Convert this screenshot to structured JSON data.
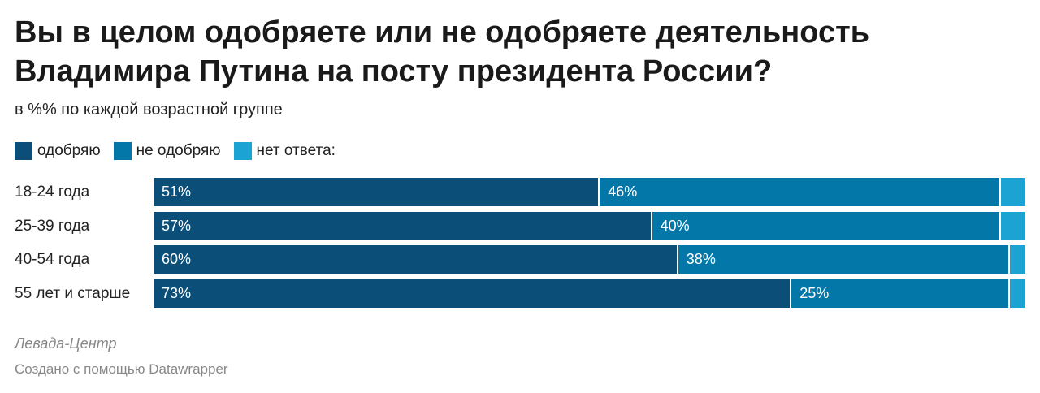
{
  "header": {
    "title_line1": "Вы в целом одобряете или не одобряете деятельность",
    "title_line2": "Владимира Путина на посту президента России?",
    "subtitle": "в %% по каждой возрастной группе"
  },
  "legend": [
    {
      "label": "одобряю",
      "color": "#0b4f78"
    },
    {
      "label": "не одобряю",
      "color": "#0377a8"
    },
    {
      "label": "нет ответа:",
      "color": "#1ba3d4"
    }
  ],
  "chart_data": {
    "type": "bar",
    "orientation": "horizontal",
    "stacked": true,
    "title": "Вы в целом одобряете или не одобряете деятельность Владимира Путина на посту президента России?",
    "subtitle": "в %% по каждой возрастной группе",
    "categories": [
      "18-24 года",
      "25-39 года",
      "40-54 года",
      "55 лет и старше"
    ],
    "series": [
      {
        "name": "одобряю",
        "values": [
          51,
          57,
          60,
          73
        ],
        "labels": [
          "51%",
          "57%",
          "60%",
          "73%"
        ],
        "color": "#0b4f78"
      },
      {
        "name": "не одобряю",
        "values": [
          46,
          40,
          38,
          25
        ],
        "labels": [
          "46%",
          "40%",
          "38%",
          "25%"
        ],
        "color": "#0377a8"
      },
      {
        "name": "нет ответа:",
        "values": [
          3,
          3,
          2,
          2
        ],
        "labels": [
          "",
          "",
          "",
          ""
        ],
        "color": "#1ba3d4"
      }
    ],
    "xlim": [
      0,
      100
    ],
    "grid": false,
    "legend_position": "top-left"
  },
  "footer": {
    "source": "Левада-Центр",
    "credit": "Создано с помощью Datawrapper"
  }
}
